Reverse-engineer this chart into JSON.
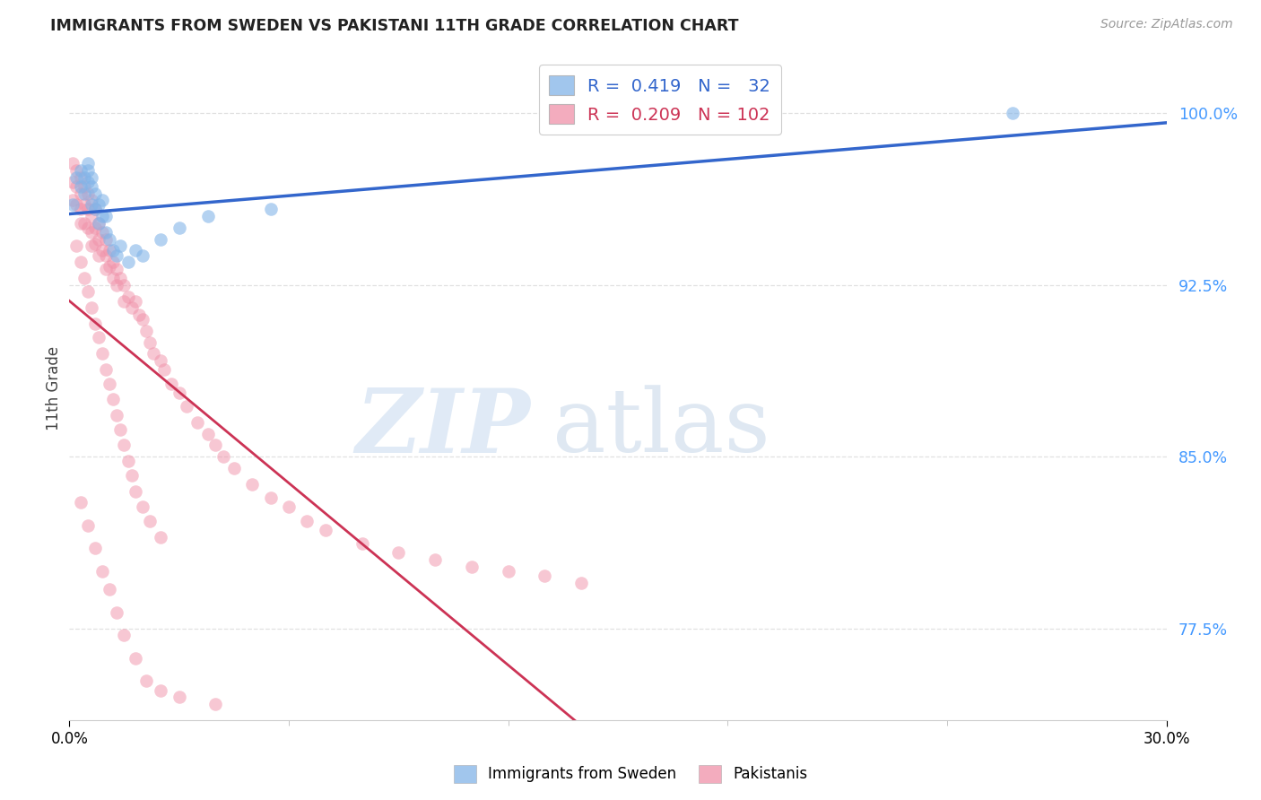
{
  "title": "IMMIGRANTS FROM SWEDEN VS PAKISTANI 11TH GRADE CORRELATION CHART",
  "source_text": "Source: ZipAtlas.com",
  "ylabel": "11th Grade",
  "ytick_labels": [
    "77.5%",
    "85.0%",
    "92.5%",
    "100.0%"
  ],
  "ytick_values": [
    0.775,
    0.85,
    0.925,
    1.0
  ],
  "legend_label_sweden": "Immigrants from Sweden",
  "legend_label_pakistan": "Pakistanis",
  "color_sweden": "#82b4e8",
  "color_pakistan": "#f090a8",
  "color_trend_sweden": "#3366cc",
  "color_trend_pakistan": "#cc3355",
  "grid_color": "#e0e0e0",
  "xlim": [
    0.0,
    0.3
  ],
  "ylim": [
    0.735,
    1.025
  ],
  "sweden_x": [
    0.001,
    0.002,
    0.003,
    0.003,
    0.004,
    0.004,
    0.005,
    0.005,
    0.005,
    0.006,
    0.006,
    0.006,
    0.007,
    0.007,
    0.008,
    0.008,
    0.009,
    0.009,
    0.01,
    0.01,
    0.011,
    0.012,
    0.013,
    0.014,
    0.016,
    0.018,
    0.02,
    0.025,
    0.03,
    0.038,
    0.055,
    0.258
  ],
  "sweden_y": [
    0.96,
    0.972,
    0.968,
    0.975,
    0.965,
    0.972,
    0.97,
    0.975,
    0.978,
    0.96,
    0.968,
    0.972,
    0.958,
    0.965,
    0.952,
    0.96,
    0.955,
    0.962,
    0.948,
    0.955,
    0.945,
    0.94,
    0.938,
    0.942,
    0.935,
    0.94,
    0.938,
    0.945,
    0.95,
    0.955,
    0.958,
    1.0
  ],
  "pakistan_x": [
    0.001,
    0.001,
    0.001,
    0.002,
    0.002,
    0.002,
    0.003,
    0.003,
    0.003,
    0.003,
    0.004,
    0.004,
    0.004,
    0.005,
    0.005,
    0.005,
    0.006,
    0.006,
    0.006,
    0.006,
    0.007,
    0.007,
    0.007,
    0.008,
    0.008,
    0.008,
    0.009,
    0.009,
    0.01,
    0.01,
    0.01,
    0.011,
    0.011,
    0.012,
    0.012,
    0.013,
    0.013,
    0.014,
    0.015,
    0.015,
    0.016,
    0.017,
    0.018,
    0.019,
    0.02,
    0.021,
    0.022,
    0.023,
    0.025,
    0.026,
    0.028,
    0.03,
    0.032,
    0.035,
    0.038,
    0.04,
    0.042,
    0.045,
    0.05,
    0.055,
    0.06,
    0.065,
    0.07,
    0.08,
    0.09,
    0.1,
    0.11,
    0.12,
    0.13,
    0.14,
    0.002,
    0.003,
    0.004,
    0.005,
    0.006,
    0.007,
    0.008,
    0.009,
    0.01,
    0.011,
    0.012,
    0.013,
    0.014,
    0.015,
    0.016,
    0.017,
    0.018,
    0.02,
    0.022,
    0.025,
    0.003,
    0.005,
    0.007,
    0.009,
    0.011,
    0.013,
    0.015,
    0.018,
    0.021,
    0.025,
    0.03,
    0.04
  ],
  "pakistan_y": [
    0.978,
    0.97,
    0.962,
    0.975,
    0.968,
    0.96,
    0.972,
    0.965,
    0.958,
    0.952,
    0.968,
    0.96,
    0.952,
    0.965,
    0.958,
    0.95,
    0.962,
    0.955,
    0.948,
    0.942,
    0.958,
    0.95,
    0.943,
    0.952,
    0.945,
    0.938,
    0.948,
    0.94,
    0.945,
    0.938,
    0.932,
    0.94,
    0.933,
    0.935,
    0.928,
    0.932,
    0.925,
    0.928,
    0.925,
    0.918,
    0.92,
    0.915,
    0.918,
    0.912,
    0.91,
    0.905,
    0.9,
    0.895,
    0.892,
    0.888,
    0.882,
    0.878,
    0.872,
    0.865,
    0.86,
    0.855,
    0.85,
    0.845,
    0.838,
    0.832,
    0.828,
    0.822,
    0.818,
    0.812,
    0.808,
    0.805,
    0.802,
    0.8,
    0.798,
    0.795,
    0.942,
    0.935,
    0.928,
    0.922,
    0.915,
    0.908,
    0.902,
    0.895,
    0.888,
    0.882,
    0.875,
    0.868,
    0.862,
    0.855,
    0.848,
    0.842,
    0.835,
    0.828,
    0.822,
    0.815,
    0.83,
    0.82,
    0.81,
    0.8,
    0.792,
    0.782,
    0.772,
    0.762,
    0.752,
    0.748,
    0.745,
    0.742
  ]
}
